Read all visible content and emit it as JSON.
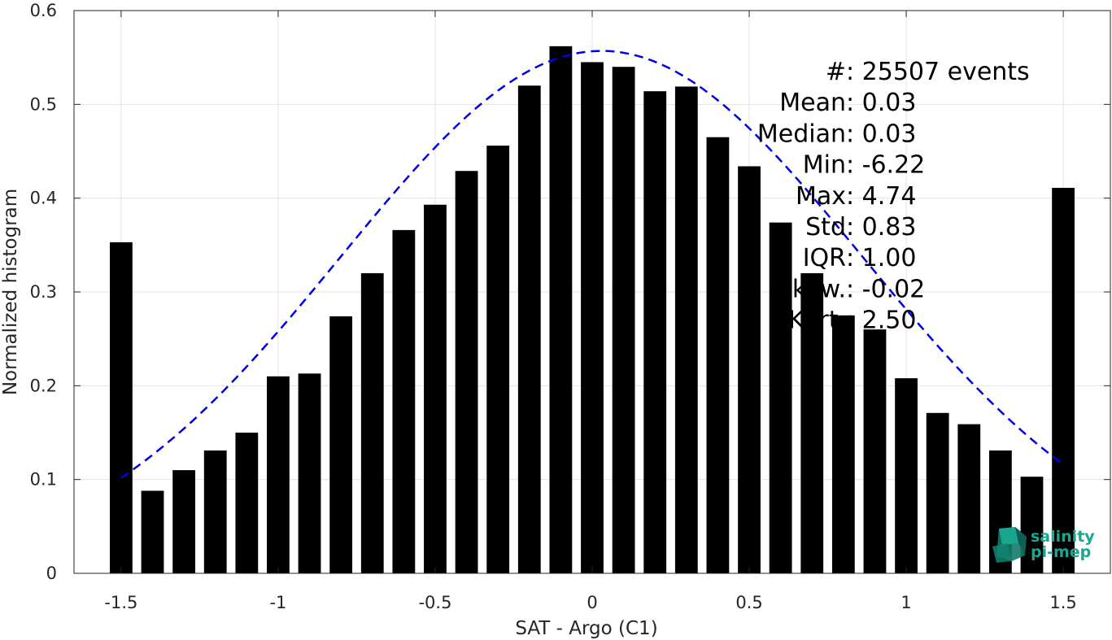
{
  "chart_data": {
    "type": "bar",
    "xlabel": "SAT - Argo (C1)",
    "ylabel": "Normalized histogram",
    "xlim": [
      -1.65,
      1.65
    ],
    "ylim": [
      0,
      0.6
    ],
    "grid": true,
    "x_ticks": [
      {
        "value": -1.5,
        "label": "-1.5"
      },
      {
        "value": -1.0,
        "label": "-1"
      },
      {
        "value": -0.5,
        "label": "-0.5"
      },
      {
        "value": 0.0,
        "label": "0"
      },
      {
        "value": 0.5,
        "label": "0.5"
      },
      {
        "value": 1.0,
        "label": "1"
      },
      {
        "value": 1.5,
        "label": "1.5"
      }
    ],
    "y_ticks": [
      {
        "value": 0.0,
        "label": "0"
      },
      {
        "value": 0.1,
        "label": "0.1"
      },
      {
        "value": 0.2,
        "label": "0.2"
      },
      {
        "value": 0.3,
        "label": "0.3"
      },
      {
        "value": 0.4,
        "label": "0.4"
      },
      {
        "value": 0.5,
        "label": "0.5"
      },
      {
        "value": 0.6,
        "label": "0.6"
      }
    ],
    "bar_color": "#000000",
    "bars": [
      {
        "x": -1.5,
        "y": 0.353
      },
      {
        "x": -1.4,
        "y": 0.088
      },
      {
        "x": -1.3,
        "y": 0.11
      },
      {
        "x": -1.2,
        "y": 0.131
      },
      {
        "x": -1.1,
        "y": 0.15
      },
      {
        "x": -1.0,
        "y": 0.21
      },
      {
        "x": -0.9,
        "y": 0.213
      },
      {
        "x": -0.8,
        "y": 0.274
      },
      {
        "x": -0.7,
        "y": 0.32
      },
      {
        "x": -0.6,
        "y": 0.366
      },
      {
        "x": -0.5,
        "y": 0.393
      },
      {
        "x": -0.4,
        "y": 0.429
      },
      {
        "x": -0.3,
        "y": 0.456
      },
      {
        "x": -0.2,
        "y": 0.52
      },
      {
        "x": -0.1,
        "y": 0.562
      },
      {
        "x": 0.0,
        "y": 0.545
      },
      {
        "x": 0.1,
        "y": 0.54
      },
      {
        "x": 0.2,
        "y": 0.514
      },
      {
        "x": 0.3,
        "y": 0.519
      },
      {
        "x": 0.4,
        "y": 0.465
      },
      {
        "x": 0.5,
        "y": 0.434
      },
      {
        "x": 0.6,
        "y": 0.374
      },
      {
        "x": 0.7,
        "y": 0.32
      },
      {
        "x": 0.8,
        "y": 0.275
      },
      {
        "x": 0.9,
        "y": 0.26
      },
      {
        "x": 1.0,
        "y": 0.208
      },
      {
        "x": 1.1,
        "y": 0.171
      },
      {
        "x": 1.2,
        "y": 0.159
      },
      {
        "x": 1.3,
        "y": 0.131
      },
      {
        "x": 1.4,
        "y": 0.103
      },
      {
        "x": 1.5,
        "y": 0.411
      }
    ],
    "fit_curve": {
      "type": "gaussian",
      "color": "#0000e6",
      "style": "dashed",
      "mean": 0.03,
      "std": 0.83,
      "peak": 0.557,
      "x_range": [
        -1.5,
        1.5
      ]
    },
    "stats": [
      {
        "key": "#  ",
        "value": ": 25507 events"
      },
      {
        "key": "Mean ",
        "value": ": 0.03"
      },
      {
        "key": "Median ",
        "value": ": 0.03"
      },
      {
        "key": "Min ",
        "value": ": -6.22"
      },
      {
        "key": "Max ",
        "value": ": 4.74"
      },
      {
        "key": "Std ",
        "value": ": 0.83"
      },
      {
        "key": "IQR ",
        "value": ": 1.00"
      },
      {
        "key": "Skew. ",
        "value": ": -0.02"
      },
      {
        "key": "Kurt. ",
        "value": ": 2.50"
      }
    ]
  },
  "logo": {
    "line1": "salinity",
    "line2": "pi-mep",
    "color": "#1aa58f"
  }
}
